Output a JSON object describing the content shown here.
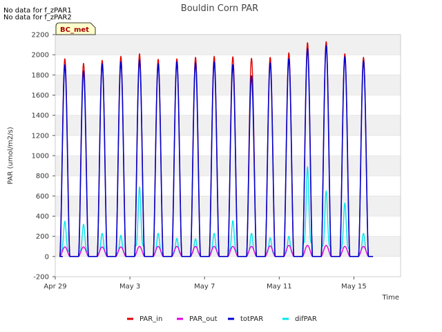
{
  "chart_data": {
    "type": "line",
    "title": "Bouldin Corn PAR",
    "xlabel": "Time",
    "ylabel": "PAR (umol/m2/s)",
    "ylim": [
      -200,
      2200
    ],
    "yticks": [
      -200,
      0,
      200,
      400,
      600,
      800,
      1000,
      1200,
      1400,
      1600,
      1800,
      2000,
      2200
    ],
    "xlim_days": [
      0,
      18.5
    ],
    "xticks": [
      {
        "day": 0,
        "label": "Apr 29"
      },
      {
        "day": 4,
        "label": "May 3"
      },
      {
        "day": 8,
        "label": "May 7"
      },
      {
        "day": 12,
        "label": "May 11"
      },
      {
        "day": 16,
        "label": "May 15"
      }
    ],
    "notes": [
      "No data for f_zPAR1",
      "No data for f_zPAR2"
    ],
    "badge": {
      "label": "BC_met",
      "text_color": "#aa0000",
      "bg_color": "#ffffcc"
    },
    "band_color": "#f0f0f0",
    "days": [
      "Apr 29",
      "Apr 30",
      "May 1",
      "May 2",
      "May 3",
      "May 4",
      "May 5",
      "May 6",
      "May 7",
      "May 8",
      "May 9",
      "May 10",
      "May 11",
      "May 12",
      "May 13",
      "May 14",
      "May 15",
      "May 16"
    ],
    "series": [
      {
        "name": "PAR_in",
        "color": "#dd0000",
        "daily_peak": [
          1960,
          1915,
          1945,
          1985,
          2010,
          1955,
          1960,
          1975,
          1985,
          1980,
          1965,
          1975,
          2020,
          2120,
          2130,
          2010,
          1975
        ]
      },
      {
        "name": "PAR_out",
        "color": "#dd00dd",
        "daily_peak": [
          95,
          95,
          95,
          95,
          100,
          100,
          100,
          100,
          100,
          100,
          100,
          105,
          110,
          110,
          110,
          100,
          100
        ]
      },
      {
        "name": "totPAR",
        "color": "#0000cc",
        "daily_peak": [
          1900,
          1840,
          1910,
          1930,
          1950,
          1910,
          1930,
          1920,
          1930,
          1900,
          1790,
          1920,
          1960,
          2060,
          2090,
          1980,
          1940
        ]
      },
      {
        "name": "difPAR",
        "color": "#00e5ee",
        "daily_peak": [
          350,
          320,
          230,
          210,
          690,
          230,
          180,
          175,
          230,
          355,
          230,
          185,
          200,
          890,
          650,
          530,
          230
        ]
      }
    ],
    "legend_position": "bottom"
  }
}
